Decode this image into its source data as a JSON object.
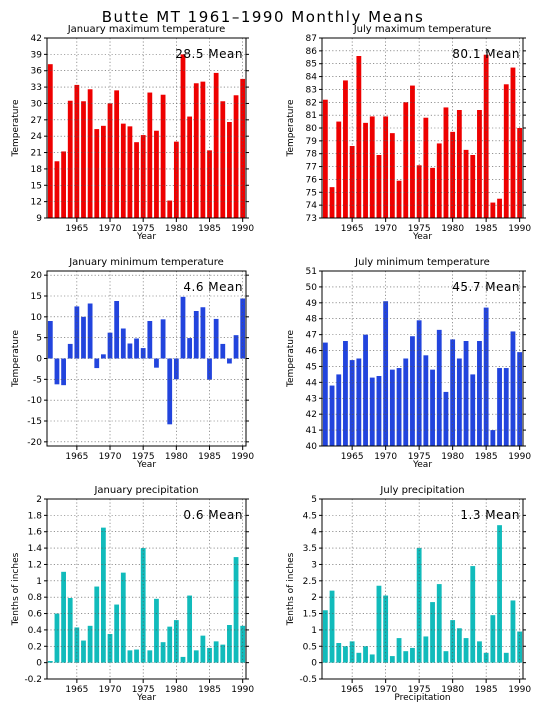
{
  "page": {
    "title": "Butte MT   1961–1990 Monthly Means"
  },
  "chart_data": [
    {
      "type": "bar",
      "title": "January maximum temperature",
      "xlabel": "Year",
      "ylabel": "Temperature",
      "annotation": "28.5 Mean",
      "color": "#ee0000",
      "ylim": [
        9,
        42
      ],
      "yticks": [
        9,
        12,
        15,
        18,
        21,
        24,
        27,
        30,
        33,
        36,
        39,
        42
      ],
      "xticks": [
        1965,
        1970,
        1975,
        1980,
        1985,
        1990
      ],
      "xlim": [
        1960.5,
        1990.5
      ],
      "grid": true,
      "x": [
        1961,
        1962,
        1963,
        1964,
        1965,
        1966,
        1967,
        1968,
        1969,
        1970,
        1971,
        1972,
        1973,
        1974,
        1975,
        1976,
        1977,
        1978,
        1979,
        1980,
        1981,
        1982,
        1983,
        1984,
        1985,
        1986,
        1987,
        1988,
        1989,
        1990
      ],
      "values": [
        37.2,
        19.4,
        21.2,
        30.5,
        33.4,
        30.4,
        32.6,
        25.3,
        25.9,
        30.0,
        32.4,
        26.3,
        25.8,
        22.9,
        24.2,
        32.0,
        25.0,
        31.6,
        12.2,
        23.0,
        39.0,
        27.6,
        33.7,
        34.0,
        21.4,
        35.6,
        30.4,
        26.6,
        31.5,
        34.5
      ]
    },
    {
      "type": "bar",
      "title": "July maximum temperature",
      "xlabel": "Year",
      "ylabel": "Temperature",
      "annotation": "80.1 Mean",
      "color": "#ee0000",
      "ylim": [
        73,
        87
      ],
      "yticks": [
        73,
        74,
        75,
        76,
        77,
        78,
        79,
        80,
        81,
        82,
        83,
        84,
        85,
        86,
        87
      ],
      "xticks": [
        1965,
        1970,
        1975,
        1980,
        1985,
        1990
      ],
      "xlim": [
        1960.5,
        1990.5
      ],
      "grid": true,
      "x": [
        1961,
        1962,
        1963,
        1964,
        1965,
        1966,
        1967,
        1968,
        1969,
        1970,
        1971,
        1972,
        1973,
        1974,
        1975,
        1976,
        1977,
        1978,
        1979,
        1980,
        1981,
        1982,
        1983,
        1984,
        1985,
        1986,
        1987,
        1988,
        1989,
        1990
      ],
      "values": [
        82.2,
        75.4,
        80.5,
        83.7,
        78.6,
        85.6,
        80.4,
        80.9,
        77.9,
        80.9,
        79.6,
        75.9,
        82.0,
        83.3,
        77.1,
        80.8,
        76.9,
        78.8,
        81.6,
        79.7,
        81.4,
        78.3,
        77.9,
        81.4,
        85.7,
        74.2,
        74.5,
        83.4,
        84.7,
        80.0
      ]
    },
    {
      "type": "bar",
      "title": "January minimum temperature",
      "xlabel": "Year",
      "ylabel": "Temperature",
      "annotation": "4.6 Mean",
      "color": "#2244dd",
      "ylim": [
        -21,
        21
      ],
      "yticks": [
        -20,
        -15,
        -10,
        -5,
        0,
        5,
        10,
        15,
        20
      ],
      "xticks": [
        1965,
        1970,
        1975,
        1980,
        1985,
        1990
      ],
      "xlim": [
        1960.5,
        1990.5
      ],
      "grid": true,
      "x": [
        1961,
        1962,
        1963,
        1964,
        1965,
        1966,
        1967,
        1968,
        1969,
        1970,
        1971,
        1972,
        1973,
        1974,
        1975,
        1976,
        1977,
        1978,
        1979,
        1980,
        1981,
        1982,
        1983,
        1984,
        1985,
        1986,
        1987,
        1988,
        1989,
        1990
      ],
      "values": [
        9.0,
        -6.2,
        -6.4,
        3.5,
        12.5,
        10.0,
        13.2,
        -2.3,
        1.0,
        6.2,
        13.8,
        7.2,
        3.6,
        4.8,
        2.5,
        9.0,
        -2.2,
        9.4,
        -15.8,
        -5.0,
        14.8,
        4.9,
        11.4,
        12.3,
        -5.1,
        9.5,
        3.5,
        -1.2,
        5.6,
        14.4
      ]
    },
    {
      "type": "bar",
      "title": "July minimum temperature",
      "xlabel": "Year",
      "ylabel": "Temperature",
      "annotation": "45.7 Mean",
      "color": "#2244dd",
      "ylim": [
        40,
        51
      ],
      "yticks": [
        40,
        41,
        42,
        43,
        44,
        45,
        46,
        47,
        48,
        49,
        50,
        51
      ],
      "xticks": [
        1965,
        1970,
        1975,
        1980,
        1985,
        1990
      ],
      "xlim": [
        1960.5,
        1990.5
      ],
      "grid": true,
      "x": [
        1961,
        1962,
        1963,
        1964,
        1965,
        1966,
        1967,
        1968,
        1969,
        1970,
        1971,
        1972,
        1973,
        1974,
        1975,
        1976,
        1977,
        1978,
        1979,
        1980,
        1981,
        1982,
        1983,
        1984,
        1985,
        1986,
        1987,
        1988,
        1989,
        1990
      ],
      "values": [
        46.5,
        43.8,
        44.5,
        46.6,
        45.4,
        45.5,
        47.0,
        44.3,
        44.4,
        49.1,
        44.8,
        44.9,
        45.5,
        46.9,
        47.9,
        45.7,
        44.8,
        47.3,
        43.4,
        46.7,
        45.5,
        46.6,
        44.5,
        46.6,
        48.7,
        41.0,
        44.9,
        44.9,
        47.2,
        45.9
      ]
    },
    {
      "type": "bar",
      "title": "January precipitation",
      "xlabel": "Year",
      "ylabel": "Tenths of inches",
      "annotation": "0.6 Mean",
      "color": "#11bbbb",
      "ylim": [
        -0.2,
        2.0
      ],
      "yticks": [
        -0.2,
        0,
        0.2,
        0.4,
        0.6,
        0.8,
        1.0,
        1.2,
        1.4,
        1.6,
        1.8,
        2.0
      ],
      "ytick_labels": [
        "-0.2",
        "0",
        "0.2",
        "0.4",
        "0.6",
        "0.8",
        "1",
        "1.2",
        "1.4",
        "1.6",
        "1.8",
        "2"
      ],
      "xticks": [
        1965,
        1970,
        1975,
        1980,
        1985,
        1990
      ],
      "xlim": [
        1960.5,
        1990.5
      ],
      "grid": true,
      "x": [
        1961,
        1962,
        1963,
        1964,
        1965,
        1966,
        1967,
        1968,
        1969,
        1970,
        1971,
        1972,
        1973,
        1974,
        1975,
        1976,
        1977,
        1978,
        1979,
        1980,
        1981,
        1982,
        1983,
        1984,
        1985,
        1986,
        1987,
        1988,
        1989,
        1990
      ],
      "values": [
        0.02,
        0.6,
        1.11,
        0.79,
        0.43,
        0.27,
        0.45,
        0.93,
        1.65,
        0.35,
        0.71,
        1.1,
        0.15,
        0.16,
        1.4,
        0.15,
        0.78,
        0.25,
        0.44,
        0.52,
        0.07,
        0.82,
        0.15,
        0.33,
        0.18,
        0.26,
        0.22,
        0.46,
        1.29,
        0.45
      ]
    },
    {
      "type": "bar",
      "title": "July precipitation",
      "xlabel": "Precipitation",
      "ylabel": "Tenths of inches",
      "annotation": "1.3 Mean",
      "color": "#11bbbb",
      "ylim": [
        -0.5,
        5.0
      ],
      "yticks": [
        -0.5,
        0,
        0.5,
        1.0,
        1.5,
        2.0,
        2.5,
        3.0,
        3.5,
        4.0,
        4.5,
        5.0
      ],
      "ytick_labels": [
        "-0.5",
        "0",
        "0.5",
        "1",
        "1.5",
        "2",
        "2.5",
        "3",
        "3.5",
        "4",
        "4.5",
        "5"
      ],
      "xticks": [
        1965,
        1970,
        1975,
        1980,
        1985,
        1990
      ],
      "xlim": [
        1960.5,
        1990.5
      ],
      "grid": true,
      "x": [
        1961,
        1962,
        1963,
        1964,
        1965,
        1966,
        1967,
        1968,
        1969,
        1970,
        1971,
        1972,
        1973,
        1974,
        1975,
        1976,
        1977,
        1978,
        1979,
        1980,
        1981,
        1982,
        1983,
        1984,
        1985,
        1986,
        1987,
        1988,
        1989,
        1990
      ],
      "values": [
        1.6,
        2.2,
        0.6,
        0.5,
        0.65,
        0.3,
        0.5,
        0.25,
        2.35,
        2.05,
        0.2,
        0.75,
        0.35,
        0.45,
        3.5,
        0.8,
        1.85,
        2.4,
        0.35,
        1.3,
        1.05,
        0.75,
        2.95,
        0.65,
        0.3,
        1.45,
        4.2,
        0.3,
        1.9,
        0.95
      ]
    }
  ]
}
